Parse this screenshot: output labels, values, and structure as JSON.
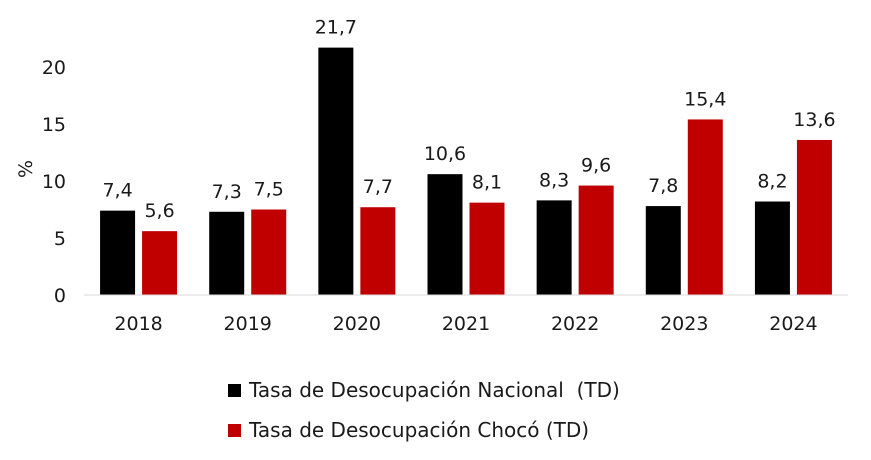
{
  "chart_data": {
    "type": "bar",
    "categories": [
      "2018",
      "2019",
      "2020",
      "2021",
      "2022",
      "2023",
      "2024"
    ],
    "series": [
      {
        "name": "Tasa de Desocupación Nacional  (TD)",
        "color": "#000000",
        "values": [
          7.4,
          7.3,
          21.7,
          10.6,
          8.3,
          7.8,
          8.2
        ],
        "labels": [
          "7,4",
          "7,3",
          "21,7",
          "10,6",
          "8,3",
          "7,8",
          "8,2"
        ]
      },
      {
        "name": "Tasa de Desocupación Chocó (TD)",
        "color": "#c00000",
        "values": [
          5.6,
          7.5,
          7.7,
          8.1,
          9.6,
          15.4,
          13.6
        ],
        "labels": [
          "5,6",
          "7,5",
          "7,7",
          "8,1",
          "9,6",
          "15,4",
          "13,6"
        ]
      }
    ],
    "ylabel": "%",
    "ylim": [
      0,
      20
    ],
    "yticks": [
      "0",
      "5",
      "10",
      "15",
      "20"
    ],
    "grid": false,
    "legend": "bottom"
  }
}
